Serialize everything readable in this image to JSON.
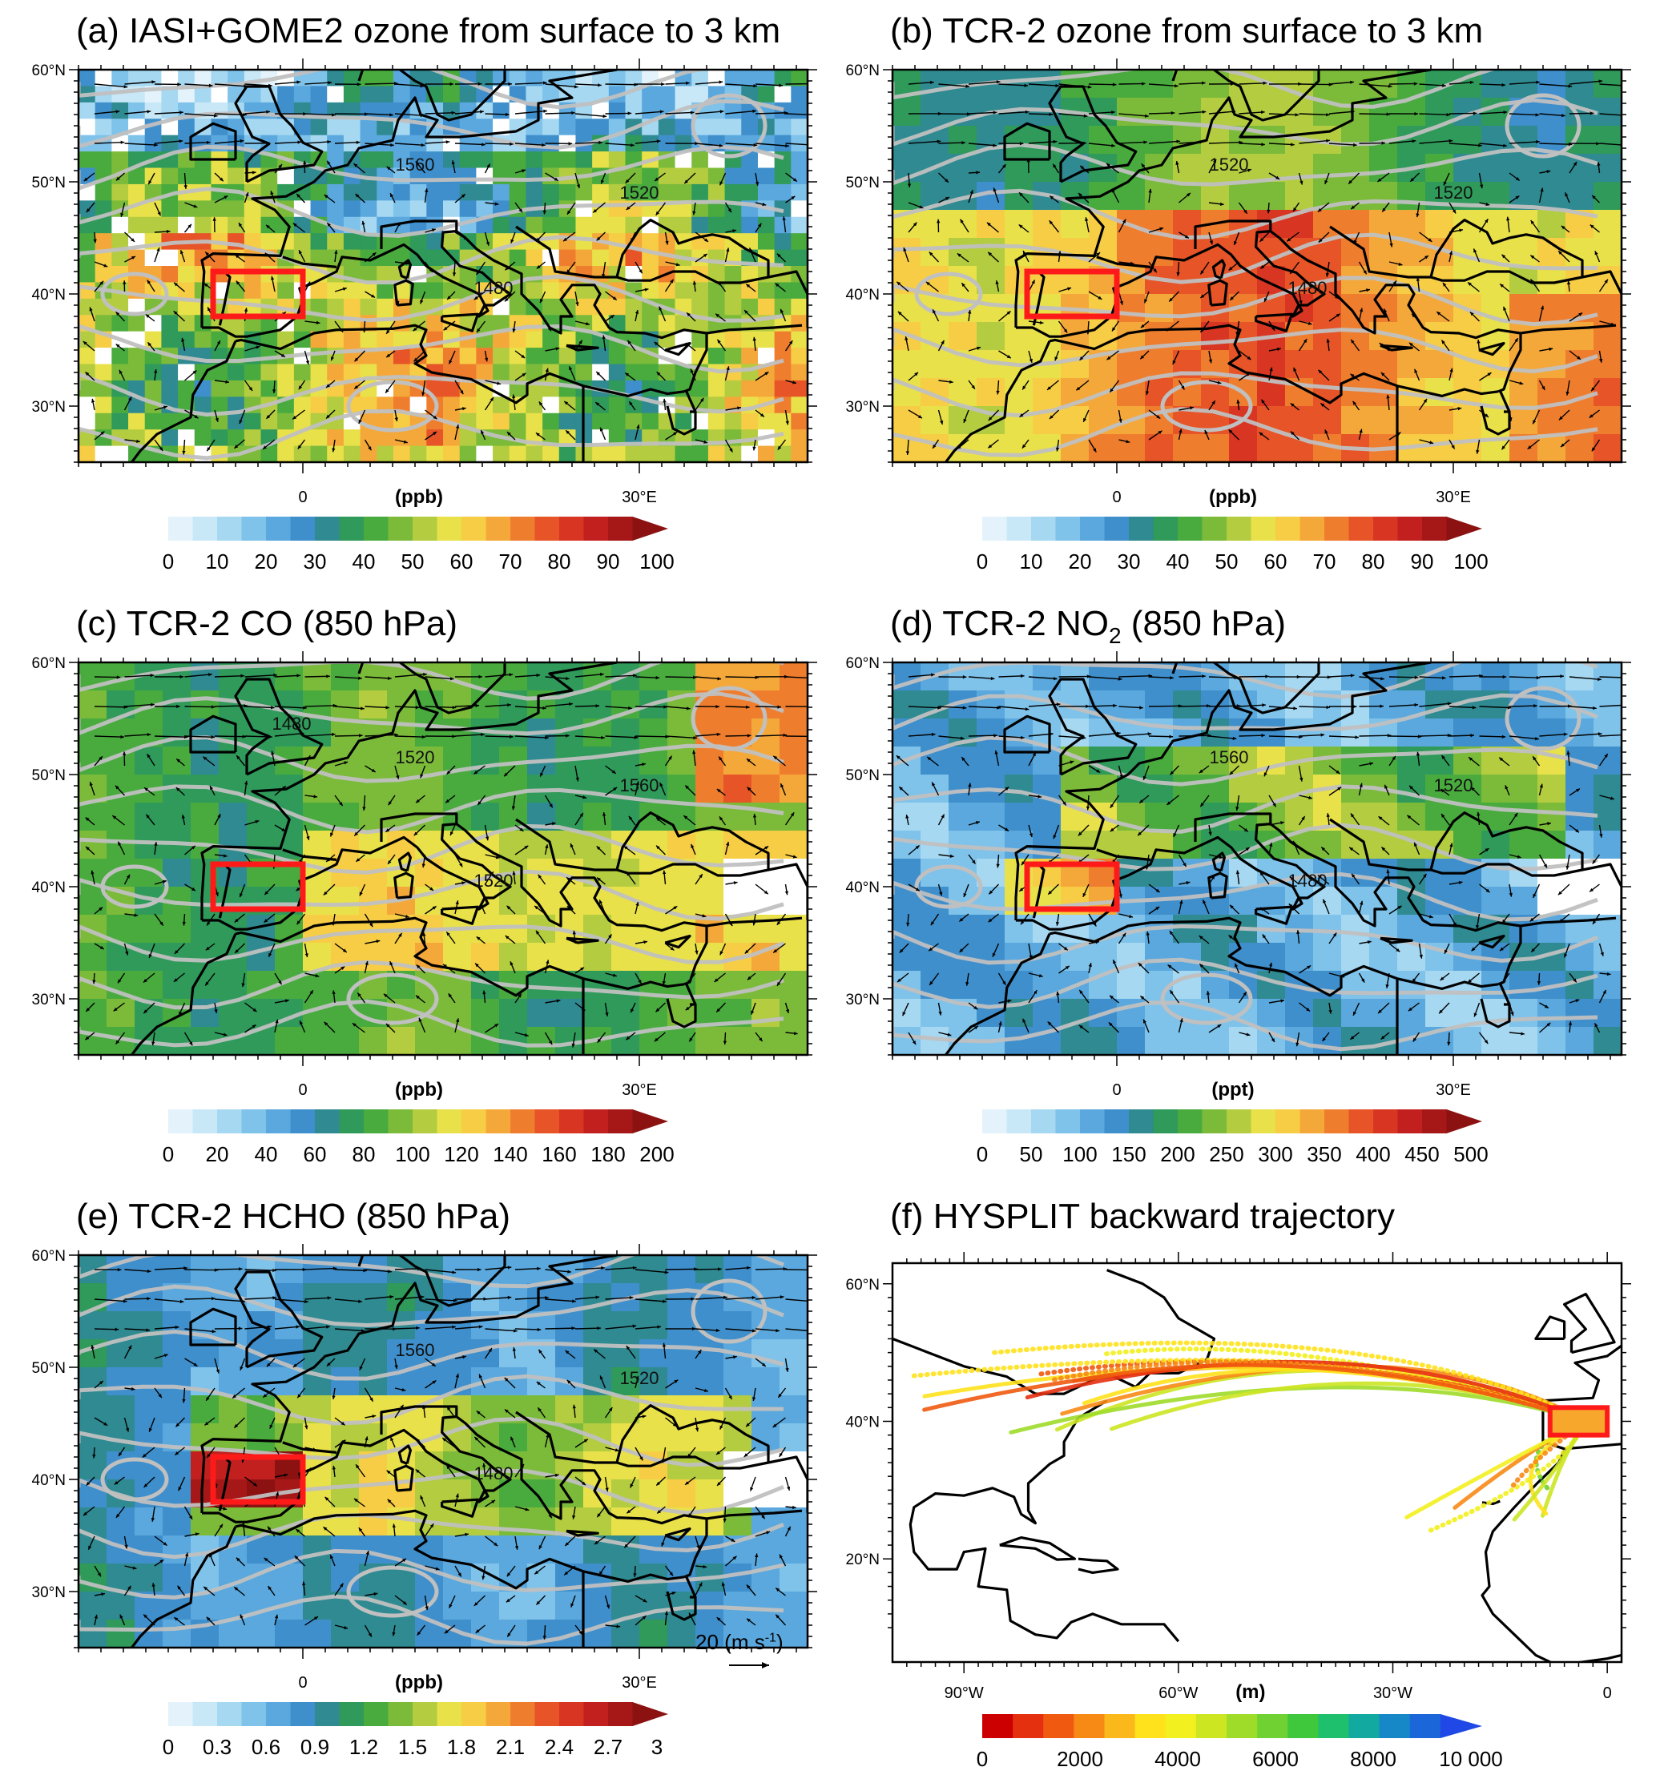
{
  "chart_data": [
    {
      "type": "heatmap",
      "title": "(a) IASI+GOME2 ozone from surface to 3 km",
      "lat_ticks": [
        "60°N",
        "50°N",
        "40°N",
        "30°N"
      ],
      "lon_ticks": [
        "0",
        "30°E"
      ],
      "unit": "(ppb)",
      "colorbar_labels": [
        "0",
        "10",
        "20",
        "30",
        "40",
        "50",
        "60",
        "70",
        "80",
        "90",
        "100"
      ],
      "colorbar_range": [
        0,
        100
      ],
      "contour_labels": [
        "1560",
        "1520",
        "1480"
      ],
      "box_region": {
        "lon": [
          -8,
          0
        ],
        "lat": [
          38,
          42
        ]
      }
    },
    {
      "type": "heatmap",
      "title": "(b) TCR-2 ozone from surface to 3 km",
      "lat_ticks": [
        "60°N",
        "50°N",
        "40°N",
        "30°N"
      ],
      "lon_ticks": [
        "0",
        "30°E"
      ],
      "unit": "(ppb)",
      "colorbar_labels": [
        "0",
        "10",
        "20",
        "30",
        "40",
        "50",
        "60",
        "70",
        "80",
        "90",
        "100"
      ],
      "colorbar_range": [
        0,
        100
      ],
      "contour_labels": [
        "1520",
        "1520",
        "1480"
      ],
      "box_region": {
        "lon": [
          -8,
          0
        ],
        "lat": [
          38,
          42
        ]
      }
    },
    {
      "type": "heatmap",
      "title": "(c) TCR-2 CO (850 hPa)",
      "lat_ticks": [
        "60°N",
        "50°N",
        "40°N",
        "30°N"
      ],
      "lon_ticks": [
        "0",
        "30°E"
      ],
      "unit": "(ppb)",
      "colorbar_labels": [
        "0",
        "20",
        "40",
        "60",
        "80",
        "100",
        "120",
        "140",
        "160",
        "180",
        "200"
      ],
      "colorbar_range": [
        0,
        200
      ],
      "contour_labels": [
        "1520",
        "1560",
        "1520",
        "1480"
      ],
      "box_region": {
        "lon": [
          -8,
          0
        ],
        "lat": [
          38,
          42
        ]
      }
    },
    {
      "type": "heatmap",
      "title_main": "(d) TCR-2 NO",
      "title_sub": "2",
      "title_tail": " (850 hPa)",
      "lat_ticks": [
        "60°N",
        "50°N",
        "40°N",
        "30°N"
      ],
      "lon_ticks": [
        "0",
        "30°E"
      ],
      "unit": "(ppt)",
      "colorbar_labels": [
        "0",
        "50",
        "100",
        "150",
        "200",
        "250",
        "300",
        "350",
        "400",
        "450",
        "500"
      ],
      "colorbar_range": [
        0,
        500
      ],
      "contour_labels": [
        "1560",
        "1520",
        "1480"
      ],
      "box_region": {
        "lon": [
          -8,
          0
        ],
        "lat": [
          38,
          42
        ]
      }
    },
    {
      "type": "heatmap",
      "title": "(e) TCR-2 HCHO (850 hPa)",
      "lat_ticks": [
        "60°N",
        "50°N",
        "40°N",
        "30°N"
      ],
      "lon_ticks": [
        "0",
        "30°E"
      ],
      "unit": "(ppb)",
      "colorbar_labels": [
        "0",
        "0.3",
        "0.6",
        "0.9",
        "1.2",
        "1.5",
        "1.8",
        "2.1",
        "2.4",
        "2.7",
        "3"
      ],
      "colorbar_range": [
        0,
        3
      ],
      "contour_labels": [
        "1560",
        "1520",
        "1480"
      ],
      "box_region": {
        "lon": [
          -8,
          0
        ],
        "lat": [
          38,
          42
        ]
      },
      "wind_reference": {
        "value": "20",
        "unit": "(m s",
        "exp": "-1",
        "close": ")"
      }
    },
    {
      "type": "scatter",
      "title": "(f) HYSPLIT backward trajectory",
      "lat_ticks": [
        "60°N",
        "40°N",
        "20°N"
      ],
      "lon_ticks": [
        "90°W",
        "60°W",
        "30°W",
        "0"
      ],
      "unit": "(m)",
      "colorbar_labels": [
        "0",
        "2000",
        "4000",
        "6000",
        "8000",
        "10 000"
      ],
      "colorbar_range": [
        0,
        10000
      ],
      "box_region": {
        "lon": [
          -8,
          0
        ],
        "lat": [
          38,
          42
        ]
      }
    }
  ],
  "colors": {
    "cmap_main": [
      "#e4f3fb",
      "#c9e8f7",
      "#a6d8f2",
      "#7fc2ea",
      "#5aa8dd",
      "#3f8fcc",
      "#2f8a91",
      "#2f9a5a",
      "#49ab3e",
      "#7cbb3a",
      "#b3cc40",
      "#e9e14a",
      "#f7cd45",
      "#f5a83a",
      "#ef7d2e",
      "#e65427",
      "#d83523",
      "#c2201f",
      "#a61818",
      "#8c1212"
    ],
    "cmap_traj": [
      "#cc0000",
      "#e53010",
      "#f05a10",
      "#f78a15",
      "#fbb81a",
      "#ffe21c",
      "#f3f01f",
      "#cde622",
      "#9fdc2a",
      "#6fd232",
      "#3fc83c",
      "#1ec06e",
      "#12a9a0",
      "#1688c8",
      "#1b66d9",
      "#1f48e6"
    ],
    "box": "#ff1a1a",
    "contour": "#c0c0c0"
  }
}
